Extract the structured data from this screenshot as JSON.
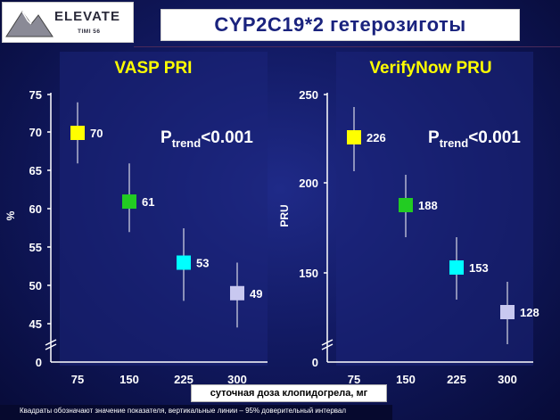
{
  "header": {
    "logo_text": "ELEVATE",
    "logo_sub": "TIMI 56",
    "title": "CYP2C19*2 гетерозиготы"
  },
  "xlabel": "суточная доза клопидогрела, мг",
  "footnote": "Квадраты обозначают значение показателя, вертикальные линии – 95% доверительный интервал",
  "colors": {
    "background": "#121a63",
    "accent_title": "#1a237e",
    "dose_75": "#ffff00",
    "dose_150": "#22cc22",
    "dose_225": "#00ffff",
    "dose_300": "#c8c8f0"
  },
  "chart_data": [
    {
      "type": "scatter",
      "title": "VASP PRI",
      "annotation": {
        "p": "P",
        "sub": "trend",
        "rest": "<0.001"
      },
      "xlabel": "",
      "ylabel": "%",
      "categories": [
        "75",
        "150",
        "225",
        "300"
      ],
      "y_ticks": [
        "75",
        "70",
        "65",
        "60",
        "55",
        "50",
        "45",
        "0"
      ],
      "y_tick_values": [
        75,
        70,
        65,
        60,
        55,
        50,
        45
      ],
      "axis_break": true,
      "ylim": [
        42,
        75
      ],
      "values": [
        70,
        61,
        53,
        49
      ],
      "ci_low": [
        66,
        57,
        48,
        44.5
      ],
      "ci_high": [
        74,
        66,
        57.5,
        53
      ],
      "point_colors": [
        "#ffff00",
        "#22cc22",
        "#00ffff",
        "#c8c8f0"
      ],
      "data_labels": [
        "70",
        "61",
        "53",
        "49"
      ]
    },
    {
      "type": "scatter",
      "title": "VerifyNow PRU",
      "annotation": {
        "p": "P",
        "sub": "trend",
        "rest": "<0.001"
      },
      "xlabel": "",
      "ylabel": "PRU",
      "categories": [
        "75",
        "150",
        "225",
        "300"
      ],
      "y_ticks": [
        "250",
        "200",
        "150",
        "0"
      ],
      "y_tick_values": [
        250,
        200,
        150
      ],
      "axis_break": true,
      "ylim": [
        115,
        250
      ],
      "values": [
        226,
        188,
        153,
        128
      ],
      "ci_low": [
        207,
        170,
        135,
        110
      ],
      "ci_high": [
        243,
        205,
        170,
        145
      ],
      "point_colors": [
        "#ffff00",
        "#22cc22",
        "#00ffff",
        "#c8c8f0"
      ],
      "data_labels": [
        "226",
        "188",
        "153",
        "128"
      ]
    }
  ]
}
